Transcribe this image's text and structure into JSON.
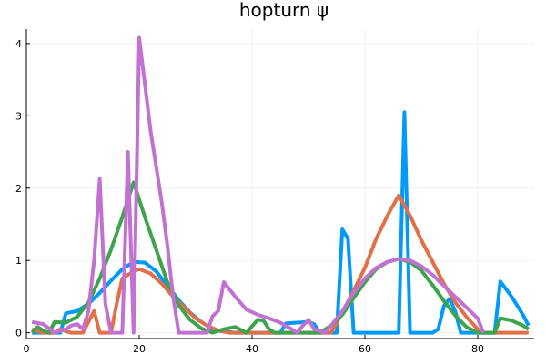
{
  "chart_data": {
    "type": "line",
    "title": "hopturn ψ",
    "xlabel": "",
    "ylabel": "",
    "xlim": [
      0,
      90
    ],
    "ylim": [
      -0.08,
      4.2
    ],
    "xticks": [
      0,
      20,
      40,
      60,
      80
    ],
    "yticks": [
      0,
      1,
      2,
      3,
      4
    ],
    "grid": true,
    "legend": "none",
    "series": [
      {
        "name": "series-1",
        "color": "#009AFA",
        "points": [
          [
            1,
            0
          ],
          [
            4,
            0
          ],
          [
            6,
            0
          ],
          [
            7,
            0.27
          ],
          [
            9,
            0.3
          ],
          [
            11,
            0.4
          ],
          [
            13,
            0.55
          ],
          [
            15,
            0.72
          ],
          [
            17,
            0.88
          ],
          [
            19,
            0.98
          ],
          [
            21,
            0.97
          ],
          [
            23,
            0.85
          ],
          [
            25,
            0.65
          ],
          [
            27,
            0.45
          ],
          [
            29,
            0.28
          ],
          [
            31,
            0.15
          ],
          [
            33,
            0.05
          ],
          [
            35,
            0.02
          ],
          [
            37,
            0
          ],
          [
            43,
            0
          ],
          [
            45,
            0
          ],
          [
            46,
            0.13
          ],
          [
            48,
            0.14
          ],
          [
            50,
            0.15
          ],
          [
            51,
            0.12
          ],
          [
            52,
            0
          ],
          [
            53,
            0
          ],
          [
            55,
            0
          ],
          [
            56,
            1.43
          ],
          [
            57,
            1.3
          ],
          [
            58,
            0
          ],
          [
            65,
            0
          ],
          [
            66,
            0
          ],
          [
            67,
            3.05
          ],
          [
            68,
            0
          ],
          [
            72,
            0
          ],
          [
            73,
            0.05
          ],
          [
            74,
            0.37
          ],
          [
            75,
            0.47
          ],
          [
            76,
            0.3
          ],
          [
            77,
            0
          ],
          [
            83,
            0
          ],
          [
            84,
            0.71
          ],
          [
            86,
            0.5
          ],
          [
            88,
            0.25
          ],
          [
            89,
            0.1
          ]
        ]
      },
      {
        "name": "series-2",
        "color": "#E26F46",
        "points": [
          [
            1,
            0.05
          ],
          [
            2,
            0.02
          ],
          [
            3,
            0
          ],
          [
            5,
            0
          ],
          [
            6,
            0.05
          ],
          [
            7,
            0.02
          ],
          [
            8,
            0
          ],
          [
            10,
            0
          ],
          [
            11,
            0.15
          ],
          [
            12,
            0.3
          ],
          [
            13,
            0
          ],
          [
            15,
            0
          ],
          [
            16,
            0.4
          ],
          [
            17,
            0.75
          ],
          [
            19,
            0.85
          ],
          [
            20,
            0.88
          ],
          [
            22,
            0.82
          ],
          [
            24,
            0.68
          ],
          [
            26,
            0.5
          ],
          [
            28,
            0.35
          ],
          [
            30,
            0.2
          ],
          [
            32,
            0.1
          ],
          [
            34,
            0.03
          ],
          [
            36,
            0
          ],
          [
            54,
            0
          ],
          [
            56,
            0.28
          ],
          [
            58,
            0.58
          ],
          [
            60,
            0.9
          ],
          [
            62,
            1.3
          ],
          [
            64,
            1.62
          ],
          [
            66,
            1.9
          ],
          [
            68,
            1.62
          ],
          [
            70,
            1.28
          ],
          [
            72,
            0.98
          ],
          [
            74,
            0.68
          ],
          [
            76,
            0.42
          ],
          [
            78,
            0.22
          ],
          [
            80,
            0.05
          ],
          [
            81,
            0
          ],
          [
            89,
            0
          ]
        ]
      },
      {
        "name": "series-3",
        "color": "#3DA44D",
        "points": [
          [
            1,
            0
          ],
          [
            2,
            0.08
          ],
          [
            3,
            0.03
          ],
          [
            4,
            0
          ],
          [
            5,
            0.15
          ],
          [
            7,
            0.14
          ],
          [
            9,
            0.22
          ],
          [
            11,
            0.42
          ],
          [
            13,
            0.75
          ],
          [
            15,
            1.15
          ],
          [
            17,
            1.6
          ],
          [
            19,
            2.08
          ],
          [
            21,
            1.6
          ],
          [
            23,
            1.15
          ],
          [
            25,
            0.7
          ],
          [
            27,
            0.38
          ],
          [
            29,
            0.18
          ],
          [
            31,
            0.06
          ],
          [
            33,
            0
          ],
          [
            35,
            0.05
          ],
          [
            37,
            0.08
          ],
          [
            39,
            0
          ],
          [
            41,
            0.18
          ],
          [
            42,
            0.17
          ],
          [
            43,
            0.05
          ],
          [
            44,
            0
          ],
          [
            52,
            0
          ],
          [
            54,
            0.1
          ],
          [
            56,
            0.25
          ],
          [
            58,
            0.48
          ],
          [
            60,
            0.7
          ],
          [
            62,
            0.88
          ],
          [
            64,
            0.98
          ],
          [
            66,
            1.02
          ],
          [
            68,
            0.98
          ],
          [
            70,
            0.86
          ],
          [
            72,
            0.66
          ],
          [
            74,
            0.44
          ],
          [
            76,
            0.24
          ],
          [
            78,
            0.08
          ],
          [
            80,
            0
          ],
          [
            83,
            0
          ],
          [
            84,
            0.2
          ],
          [
            86,
            0.17
          ],
          [
            88,
            0.1
          ],
          [
            89,
            0.05
          ]
        ]
      },
      {
        "name": "series-4",
        "color": "#C271D2",
        "points": [
          [
            1,
            0.15
          ],
          [
            3,
            0.12
          ],
          [
            4,
            0.06
          ],
          [
            5,
            0
          ],
          [
            7,
            0.05
          ],
          [
            8,
            0.1
          ],
          [
            9,
            0.12
          ],
          [
            10,
            0.05
          ],
          [
            11,
            0.3
          ],
          [
            12,
            1
          ],
          [
            13,
            2.13
          ],
          [
            14,
            0.4
          ],
          [
            15,
            0
          ],
          [
            17,
            0
          ],
          [
            18,
            2.5
          ],
          [
            19,
            0
          ],
          [
            20,
            4.08
          ],
          [
            22,
            2.8
          ],
          [
            24,
            1.8
          ],
          [
            25,
            1.2
          ],
          [
            26,
            0.5
          ],
          [
            27,
            0
          ],
          [
            32,
            0
          ],
          [
            33,
            0.23
          ],
          [
            34,
            0.3
          ],
          [
            35,
            0.7
          ],
          [
            37,
            0.5
          ],
          [
            39,
            0.32
          ],
          [
            41,
            0.25
          ],
          [
            43,
            0.2
          ],
          [
            45,
            0.14
          ],
          [
            47,
            0.05
          ],
          [
            48,
            0
          ],
          [
            49,
            0.1
          ],
          [
            50,
            0.18
          ],
          [
            51,
            0.05
          ],
          [
            53,
            0
          ],
          [
            56,
            0.3
          ],
          [
            58,
            0.55
          ],
          [
            60,
            0.75
          ],
          [
            62,
            0.9
          ],
          [
            64,
            0.98
          ],
          [
            66,
            1.02
          ],
          [
            68,
            1.0
          ],
          [
            70,
            0.92
          ],
          [
            72,
            0.8
          ],
          [
            74,
            0.65
          ],
          [
            76,
            0.5
          ],
          [
            78,
            0.35
          ],
          [
            80,
            0.2
          ],
          [
            81,
            0
          ]
        ]
      }
    ]
  }
}
